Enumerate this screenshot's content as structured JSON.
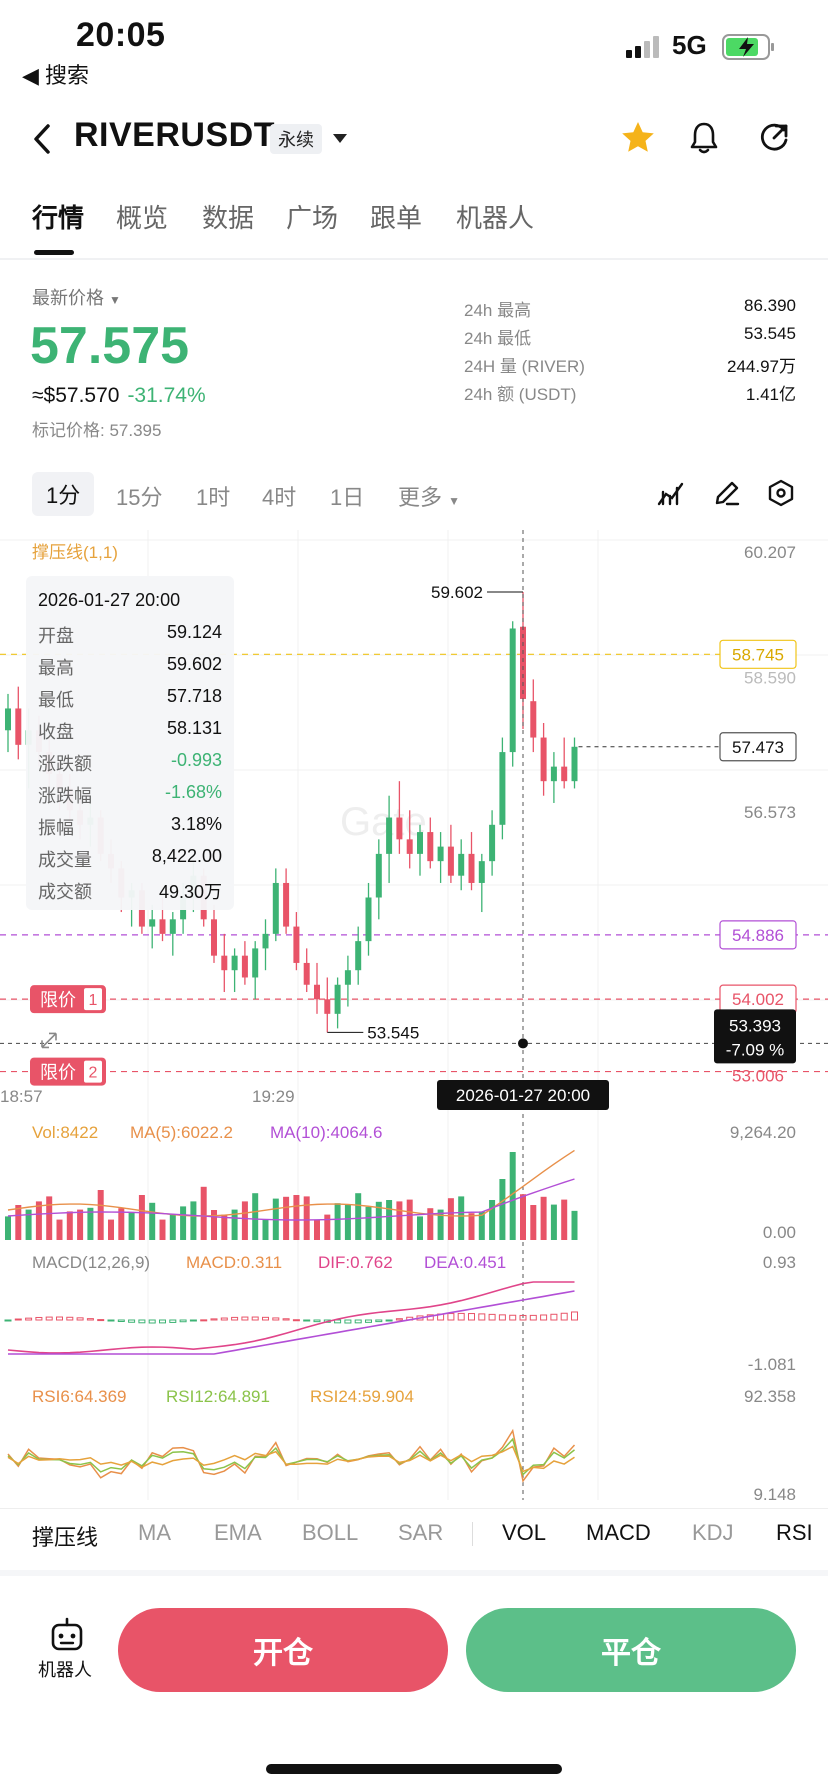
{
  "status": {
    "time": "20:05",
    "back_label": "◀ 搜索",
    "network": "5G"
  },
  "header": {
    "symbol": "RIVERUSDT",
    "contract_type": "永续"
  },
  "tabs": [
    "行情",
    "概览",
    "数据",
    "广场",
    "跟单",
    "机器人"
  ],
  "price": {
    "label": "最新价格",
    "last": "57.575",
    "usd": "≈$57.570",
    "change": "-31.74%",
    "mark": "标记价格: 57.395"
  },
  "stats": [
    {
      "label": "24h  最高",
      "value": "86.390"
    },
    {
      "label": "24h  最低",
      "value": "53.545"
    },
    {
      "label": "24H  量 (RIVER)",
      "value": "244.97万"
    },
    {
      "label": "24h  额 (USDT)",
      "value": "1.41亿"
    }
  ],
  "timeframes": [
    "1分",
    "15分",
    "1时",
    "4时",
    "1日",
    "更多"
  ],
  "chart": {
    "indicator_title": "撑压线(1,1)",
    "y_top": "60.207",
    "level_yellow": "58.745",
    "level_yellow_under": "58.590",
    "level_current": "57.473",
    "y_mid": "56.573",
    "level_purple": "54.886",
    "level_red1": "54.002",
    "level_red2": "53.006",
    "crosshair_price": "53.393",
    "crosshair_pct": "-7.09 %",
    "high_annot": "59.602",
    "low_annot": "53.545",
    "limit_label": "限价",
    "limit_1": "1",
    "limit_2": "2",
    "x_left": "18:57",
    "x_mid": "19:29",
    "crosshair_time": "2026-01-27 20:00",
    "watermark": "Gate",
    "vol_label": "Vol:8422",
    "vol_ma5": "MA(5):6022.2",
    "vol_ma10": "MA(10):4064.6",
    "vol_top": "9,264.20",
    "vol_bottom": "0.00",
    "macd_label": "MACD(12,26,9)",
    "macd_val": "MACD:0.311",
    "dif": "DIF:0.762",
    "dea": "DEA:0.451",
    "macd_top": "0.93",
    "macd_bottom": "-1.081",
    "rsi6": "RSI6:64.369",
    "rsi12": "RSI12:64.891",
    "rsi24": "RSI24:59.904",
    "rsi_top": "92.358",
    "rsi_bottom": "9.148",
    "colors": {
      "up": "#3db374",
      "down": "#e85468",
      "yellow": "#f0c419",
      "purple": "#b24fd6"
    }
  },
  "tooltip": {
    "datetime": "2026-01-27 20:00",
    "rows": [
      {
        "k": "开盘",
        "v": "59.124"
      },
      {
        "k": "最高",
        "v": "59.602"
      },
      {
        "k": "最低",
        "v": "57.718"
      },
      {
        "k": "收盘",
        "v": "58.131"
      },
      {
        "k": "涨跌额",
        "v": "-0.993"
      },
      {
        "k": "涨跌幅",
        "v": "-1.68%"
      },
      {
        "k": "振幅",
        "v": "3.18%"
      },
      {
        "k": "成交量",
        "v": "8,422.00"
      },
      {
        "k": "成交额",
        "v": "49.30万"
      }
    ]
  },
  "indicators": [
    "撑压线",
    "MA",
    "EMA",
    "BOLL",
    "SAR",
    "VOL",
    "MACD",
    "KDJ",
    "RSI"
  ],
  "bottom": {
    "robot": "机器人",
    "open": "开仓",
    "close": "平仓"
  },
  "chart_data": {
    "type": "candlestick",
    "title": "",
    "candles": [
      {
        "o": 57.7,
        "h": 58.2,
        "l": 57.4,
        "c": 58.0
      },
      {
        "o": 58.0,
        "h": 58.3,
        "l": 57.3,
        "c": 57.5
      },
      {
        "o": 57.5,
        "h": 58.0,
        "l": 56.9,
        "c": 57.7
      },
      {
        "o": 57.7,
        "h": 57.9,
        "l": 57.2,
        "c": 57.4
      },
      {
        "o": 57.4,
        "h": 57.6,
        "l": 56.8,
        "c": 57.1
      },
      {
        "o": 57.1,
        "h": 57.3,
        "l": 56.6,
        "c": 56.9
      },
      {
        "o": 56.9,
        "h": 57.1,
        "l": 56.4,
        "c": 56.6
      },
      {
        "o": 56.6,
        "h": 56.8,
        "l": 56.2,
        "c": 56.4
      },
      {
        "o": 56.4,
        "h": 56.7,
        "l": 56.1,
        "c": 56.5
      },
      {
        "o": 56.5,
        "h": 56.6,
        "l": 55.9,
        "c": 56.0
      },
      {
        "o": 56.0,
        "h": 56.2,
        "l": 55.6,
        "c": 55.8
      },
      {
        "o": 55.8,
        "h": 55.9,
        "l": 55.2,
        "c": 55.4
      },
      {
        "o": 55.4,
        "h": 55.6,
        "l": 55.0,
        "c": 55.5
      },
      {
        "o": 55.5,
        "h": 55.6,
        "l": 54.9,
        "c": 55.0
      },
      {
        "o": 55.0,
        "h": 55.3,
        "l": 54.7,
        "c": 55.1
      },
      {
        "o": 55.1,
        "h": 55.4,
        "l": 54.8,
        "c": 54.9
      },
      {
        "o": 54.9,
        "h": 55.2,
        "l": 54.6,
        "c": 55.1
      },
      {
        "o": 55.1,
        "h": 55.6,
        "l": 54.9,
        "c": 55.4
      },
      {
        "o": 55.4,
        "h": 55.9,
        "l": 55.2,
        "c": 55.7
      },
      {
        "o": 55.7,
        "h": 55.8,
        "l": 55.0,
        "c": 55.1
      },
      {
        "o": 55.1,
        "h": 55.3,
        "l": 54.5,
        "c": 54.6
      },
      {
        "o": 54.6,
        "h": 54.9,
        "l": 54.1,
        "c": 54.4
      },
      {
        "o": 54.4,
        "h": 54.7,
        "l": 54.1,
        "c": 54.6
      },
      {
        "o": 54.6,
        "h": 54.8,
        "l": 54.2,
        "c": 54.3
      },
      {
        "o": 54.3,
        "h": 54.8,
        "l": 54.0,
        "c": 54.7
      },
      {
        "o": 54.7,
        "h": 55.1,
        "l": 54.4,
        "c": 54.9
      },
      {
        "o": 54.9,
        "h": 55.8,
        "l": 54.8,
        "c": 55.6
      },
      {
        "o": 55.6,
        "h": 55.8,
        "l": 54.9,
        "c": 55.0
      },
      {
        "o": 55.0,
        "h": 55.2,
        "l": 54.4,
        "c": 54.5
      },
      {
        "o": 54.5,
        "h": 54.7,
        "l": 54.1,
        "c": 54.2
      },
      {
        "o": 54.2,
        "h": 54.5,
        "l": 53.8,
        "c": 54.0
      },
      {
        "o": 54.0,
        "h": 54.3,
        "l": 53.545,
        "c": 53.8
      },
      {
        "o": 53.8,
        "h": 54.3,
        "l": 53.6,
        "c": 54.2
      },
      {
        "o": 54.2,
        "h": 54.6,
        "l": 53.9,
        "c": 54.4
      },
      {
        "o": 54.4,
        "h": 55.0,
        "l": 54.2,
        "c": 54.8
      },
      {
        "o": 54.8,
        "h": 55.6,
        "l": 54.6,
        "c": 55.4
      },
      {
        "o": 55.4,
        "h": 56.2,
        "l": 55.1,
        "c": 56.0
      },
      {
        "o": 56.0,
        "h": 56.8,
        "l": 55.6,
        "c": 56.5
      },
      {
        "o": 56.5,
        "h": 57.0,
        "l": 56.0,
        "c": 56.2
      },
      {
        "o": 56.2,
        "h": 56.6,
        "l": 55.8,
        "c": 56.0
      },
      {
        "o": 56.0,
        "h": 56.4,
        "l": 55.7,
        "c": 56.3
      },
      {
        "o": 56.3,
        "h": 56.5,
        "l": 55.8,
        "c": 55.9
      },
      {
        "o": 55.9,
        "h": 56.3,
        "l": 55.6,
        "c": 56.1
      },
      {
        "o": 56.1,
        "h": 56.4,
        "l": 55.6,
        "c": 55.7
      },
      {
        "o": 55.7,
        "h": 56.2,
        "l": 55.5,
        "c": 56.0
      },
      {
        "o": 56.0,
        "h": 56.3,
        "l": 55.5,
        "c": 55.6
      },
      {
        "o": 55.6,
        "h": 56.0,
        "l": 55.2,
        "c": 55.9
      },
      {
        "o": 55.9,
        "h": 56.6,
        "l": 55.7,
        "c": 56.4
      },
      {
        "o": 56.4,
        "h": 57.6,
        "l": 56.2,
        "c": 57.4
      },
      {
        "o": 57.4,
        "h": 59.2,
        "l": 57.2,
        "c": 59.1
      },
      {
        "o": 59.124,
        "h": 59.602,
        "l": 57.718,
        "c": 58.131
      },
      {
        "o": 58.1,
        "h": 58.4,
        "l": 57.4,
        "c": 57.6
      },
      {
        "o": 57.6,
        "h": 57.8,
        "l": 56.8,
        "c": 57.0
      },
      {
        "o": 57.0,
        "h": 57.4,
        "l": 56.7,
        "c": 57.2
      },
      {
        "o": 57.2,
        "h": 57.6,
        "l": 56.9,
        "c": 57.0
      },
      {
        "o": 57.0,
        "h": 57.6,
        "l": 56.9,
        "c": 57.473
      }
    ],
    "ylim": [
      53.0,
      60.207
    ]
  }
}
